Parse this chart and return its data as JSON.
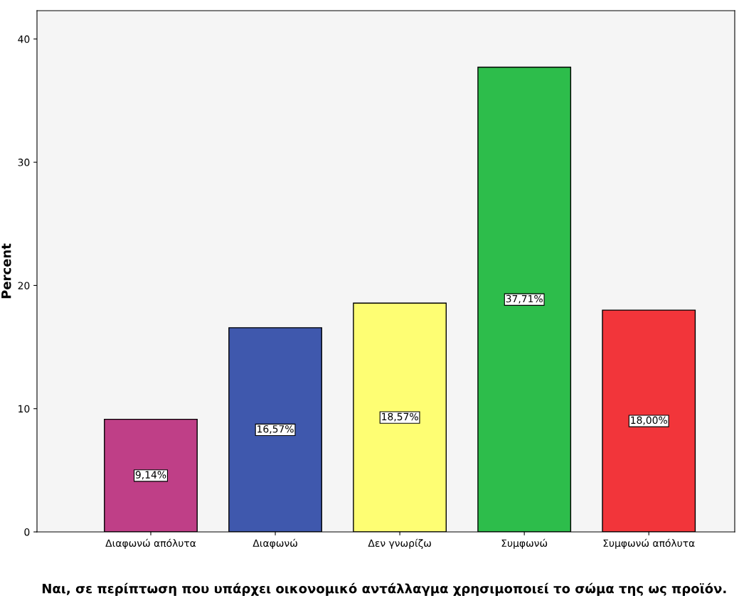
{
  "chart_data": {
    "type": "bar",
    "xlabel": "Ναι, σε περίπτωση που υπάρχει οικονομικό αντάλλαγμα χρησιμοποιεί το σώμα της ως προϊόν.",
    "ylabel": "Percent",
    "categories": [
      "Διαφωνώ απόλυτα",
      "Διαφωνώ",
      "Δεν γνωρίζω",
      "Συμφωνώ",
      "Συμφωνώ απόλυτα"
    ],
    "values": [
      9.14,
      16.57,
      18.57,
      37.71,
      18.0
    ],
    "value_labels": [
      "9,14%",
      "16,57%",
      "18,57%",
      "37,71%",
      "18,00%"
    ],
    "colors": [
      "#bf3f87",
      "#3f58ad",
      "#fefe73",
      "#2dbd4b",
      "#f2353a"
    ],
    "ylim": [
      0,
      42.3
    ],
    "yticks": [
      0,
      10,
      20,
      30,
      40
    ],
    "grid": false,
    "legend": false
  }
}
